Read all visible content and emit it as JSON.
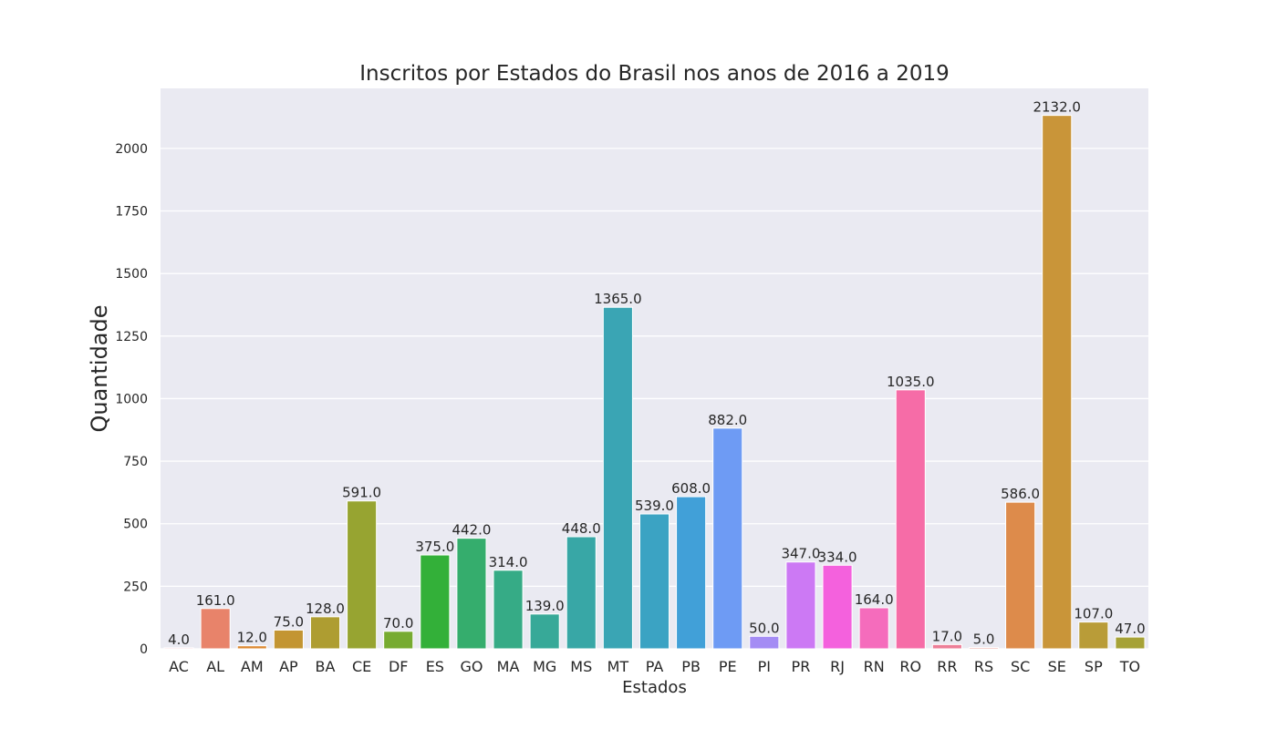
{
  "chart_data": {
    "type": "bar",
    "title": "Inscritos por Estados do Brasil nos anos de 2016 a 2019",
    "xlabel": "Estados",
    "ylabel": "Quantidade",
    "ylim": [
      0,
      2240
    ],
    "yticks": [
      0,
      250,
      500,
      750,
      1000,
      1250,
      1500,
      1750,
      2000
    ],
    "grid": true,
    "categories": [
      "AC",
      "AL",
      "AM",
      "AP",
      "BA",
      "CE",
      "DF",
      "ES",
      "GO",
      "MA",
      "MG",
      "MS",
      "MT",
      "PA",
      "PB",
      "PE",
      "PI",
      "PR",
      "RJ",
      "RN",
      "RO",
      "RR",
      "RS",
      "SC",
      "SE",
      "SP",
      "TO"
    ],
    "values": [
      4.0,
      161.0,
      12.0,
      75.0,
      128.0,
      591.0,
      70.0,
      375.0,
      442.0,
      314.0,
      139.0,
      448.0,
      1365.0,
      539.0,
      608.0,
      882.0,
      50.0,
      347.0,
      334.0,
      164.0,
      1035.0,
      17.0,
      5.0,
      586.0,
      2132.0,
      107.0,
      47.0
    ],
    "data_labels": [
      "4.0",
      "161.0",
      "12.0",
      "75.0",
      "128.0",
      "591.0",
      "70.0",
      "375.0",
      "442.0",
      "314.0",
      "139.0",
      "448.0",
      "1365.0",
      "539.0",
      "608.0",
      "882.0",
      "50.0",
      "347.0",
      "334.0",
      "164.0",
      "1035.0",
      "17.0",
      "5.0",
      "586.0",
      "2132.0",
      "107.0",
      "47.0"
    ],
    "colors": [
      "#f77189",
      "#e8836a",
      "#dc8932",
      "#c39532",
      "#ae9d31",
      "#97a431",
      "#77ab31",
      "#33b039",
      "#35ad6d",
      "#36ab86",
      "#37a998",
      "#38a7a6",
      "#3aa5b4",
      "#3ba3c3",
      "#41a0d8",
      "#6e9bf4",
      "#a48cf4",
      "#cc79f4",
      "#f461dd",
      "#f56cbc",
      "#f66ca7",
      "#ed7e97",
      "#e6877a",
      "#dd8b4b",
      "#c99539",
      "#b99c38",
      "#a6a237"
    ],
    "plot_background": "#eaeaf2",
    "grid_color": "#ffffff"
  }
}
